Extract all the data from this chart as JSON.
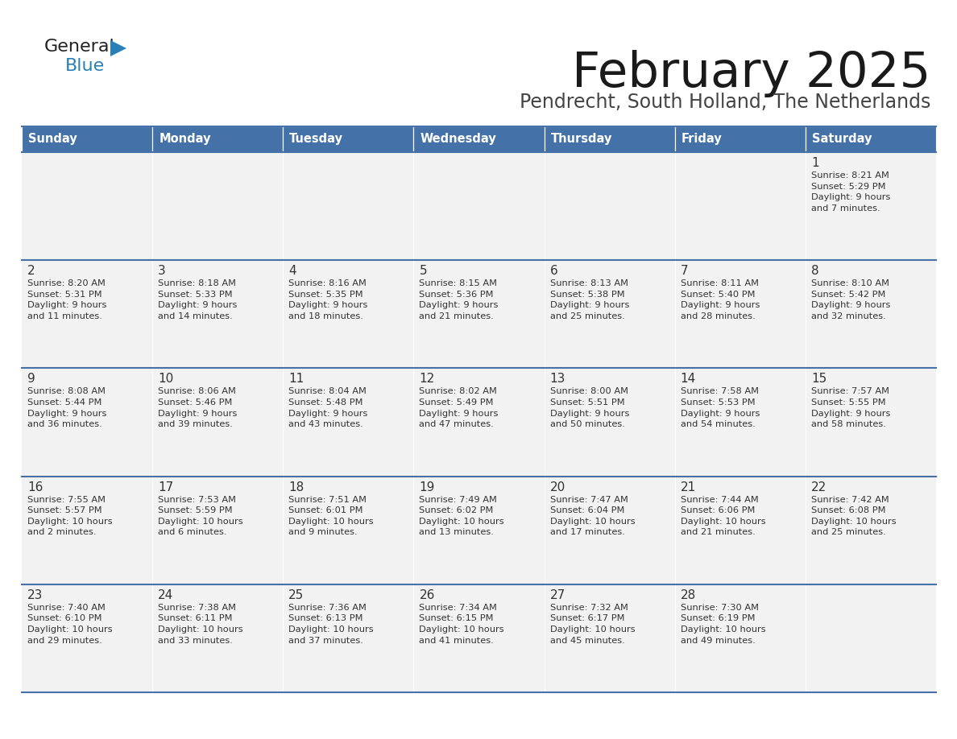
{
  "title": "February 2025",
  "subtitle": "Pendrecht, South Holland, The Netherlands",
  "header_bg": "#4472a8",
  "header_text_color": "#ffffff",
  "cell_bg": "#f2f2f2",
  "border_color": "#4472a8",
  "text_color": "#333333",
  "day_headers": [
    "Sunday",
    "Monday",
    "Tuesday",
    "Wednesday",
    "Thursday",
    "Friday",
    "Saturday"
  ],
  "calendar_data": [
    [
      null,
      null,
      null,
      null,
      null,
      null,
      {
        "day": "1",
        "sunrise": "8:21 AM",
        "sunset": "5:29 PM",
        "daylight": "9 hours\nand 7 minutes."
      }
    ],
    [
      {
        "day": "2",
        "sunrise": "8:20 AM",
        "sunset": "5:31 PM",
        "daylight": "9 hours\nand 11 minutes."
      },
      {
        "day": "3",
        "sunrise": "8:18 AM",
        "sunset": "5:33 PM",
        "daylight": "9 hours\nand 14 minutes."
      },
      {
        "day": "4",
        "sunrise": "8:16 AM",
        "sunset": "5:35 PM",
        "daylight": "9 hours\nand 18 minutes."
      },
      {
        "day": "5",
        "sunrise": "8:15 AM",
        "sunset": "5:36 PM",
        "daylight": "9 hours\nand 21 minutes."
      },
      {
        "day": "6",
        "sunrise": "8:13 AM",
        "sunset": "5:38 PM",
        "daylight": "9 hours\nand 25 minutes."
      },
      {
        "day": "7",
        "sunrise": "8:11 AM",
        "sunset": "5:40 PM",
        "daylight": "9 hours\nand 28 minutes."
      },
      {
        "day": "8",
        "sunrise": "8:10 AM",
        "sunset": "5:42 PM",
        "daylight": "9 hours\nand 32 minutes."
      }
    ],
    [
      {
        "day": "9",
        "sunrise": "8:08 AM",
        "sunset": "5:44 PM",
        "daylight": "9 hours\nand 36 minutes."
      },
      {
        "day": "10",
        "sunrise": "8:06 AM",
        "sunset": "5:46 PM",
        "daylight": "9 hours\nand 39 minutes."
      },
      {
        "day": "11",
        "sunrise": "8:04 AM",
        "sunset": "5:48 PM",
        "daylight": "9 hours\nand 43 minutes."
      },
      {
        "day": "12",
        "sunrise": "8:02 AM",
        "sunset": "5:49 PM",
        "daylight": "9 hours\nand 47 minutes."
      },
      {
        "day": "13",
        "sunrise": "8:00 AM",
        "sunset": "5:51 PM",
        "daylight": "9 hours\nand 50 minutes."
      },
      {
        "day": "14",
        "sunrise": "7:58 AM",
        "sunset": "5:53 PM",
        "daylight": "9 hours\nand 54 minutes."
      },
      {
        "day": "15",
        "sunrise": "7:57 AM",
        "sunset": "5:55 PM",
        "daylight": "9 hours\nand 58 minutes."
      }
    ],
    [
      {
        "day": "16",
        "sunrise": "7:55 AM",
        "sunset": "5:57 PM",
        "daylight": "10 hours\nand 2 minutes."
      },
      {
        "day": "17",
        "sunrise": "7:53 AM",
        "sunset": "5:59 PM",
        "daylight": "10 hours\nand 6 minutes."
      },
      {
        "day": "18",
        "sunrise": "7:51 AM",
        "sunset": "6:01 PM",
        "daylight": "10 hours\nand 9 minutes."
      },
      {
        "day": "19",
        "sunrise": "7:49 AM",
        "sunset": "6:02 PM",
        "daylight": "10 hours\nand 13 minutes."
      },
      {
        "day": "20",
        "sunrise": "7:47 AM",
        "sunset": "6:04 PM",
        "daylight": "10 hours\nand 17 minutes."
      },
      {
        "day": "21",
        "sunrise": "7:44 AM",
        "sunset": "6:06 PM",
        "daylight": "10 hours\nand 21 minutes."
      },
      {
        "day": "22",
        "sunrise": "7:42 AM",
        "sunset": "6:08 PM",
        "daylight": "10 hours\nand 25 minutes."
      }
    ],
    [
      {
        "day": "23",
        "sunrise": "7:40 AM",
        "sunset": "6:10 PM",
        "daylight": "10 hours\nand 29 minutes."
      },
      {
        "day": "24",
        "sunrise": "7:38 AM",
        "sunset": "6:11 PM",
        "daylight": "10 hours\nand 33 minutes."
      },
      {
        "day": "25",
        "sunrise": "7:36 AM",
        "sunset": "6:13 PM",
        "daylight": "10 hours\nand 37 minutes."
      },
      {
        "day": "26",
        "sunrise": "7:34 AM",
        "sunset": "6:15 PM",
        "daylight": "10 hours\nand 41 minutes."
      },
      {
        "day": "27",
        "sunrise": "7:32 AM",
        "sunset": "6:17 PM",
        "daylight": "10 hours\nand 45 minutes."
      },
      {
        "day": "28",
        "sunrise": "7:30 AM",
        "sunset": "6:19 PM",
        "daylight": "10 hours\nand 49 minutes."
      },
      null
    ]
  ],
  "logo_text1_color": "#222222",
  "logo_text2_color": "#2980b9",
  "logo_triangle_color": "#2980b9"
}
